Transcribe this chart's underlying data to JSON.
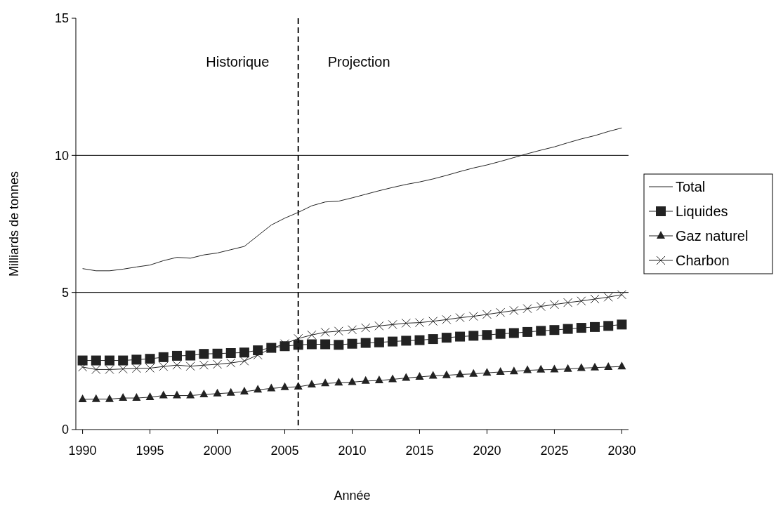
{
  "chart_data": {
    "type": "line",
    "xlabel": "Année",
    "ylabel": "Milliards de tonnes",
    "x": [
      1990,
      1991,
      1992,
      1993,
      1994,
      1995,
      1996,
      1997,
      1998,
      1999,
      2000,
      2001,
      2002,
      2003,
      2004,
      2005,
      2006,
      2007,
      2008,
      2009,
      2010,
      2011,
      2012,
      2013,
      2014,
      2015,
      2016,
      2017,
      2018,
      2019,
      2020,
      2021,
      2022,
      2023,
      2024,
      2025,
      2026,
      2027,
      2028,
      2029,
      2030
    ],
    "series": [
      {
        "name": "Total",
        "color": "#222222",
        "marker": "none",
        "values": [
          5.87,
          5.79,
          5.79,
          5.85,
          5.93,
          6.0,
          6.16,
          6.28,
          6.25,
          6.37,
          6.44,
          6.56,
          6.68,
          7.07,
          7.46,
          7.71,
          7.92,
          8.16,
          8.3,
          8.33,
          8.45,
          8.58,
          8.71,
          8.83,
          8.94,
          9.03,
          9.14,
          9.27,
          9.41,
          9.54,
          9.65,
          9.78,
          9.92,
          10.06,
          10.19,
          10.31,
          10.46,
          10.6,
          10.72,
          10.87,
          11.0
        ]
      },
      {
        "name": "Liquides",
        "color": "#222222",
        "marker": "square",
        "values": [
          2.52,
          2.52,
          2.52,
          2.52,
          2.55,
          2.58,
          2.64,
          2.69,
          2.7,
          2.76,
          2.77,
          2.79,
          2.81,
          2.89,
          2.98,
          3.04,
          3.09,
          3.11,
          3.11,
          3.09,
          3.13,
          3.16,
          3.18,
          3.21,
          3.24,
          3.26,
          3.3,
          3.35,
          3.39,
          3.42,
          3.45,
          3.49,
          3.52,
          3.56,
          3.6,
          3.63,
          3.67,
          3.71,
          3.74,
          3.78,
          3.83
        ]
      },
      {
        "name": "Gaz naturel",
        "color": "#222222",
        "marker": "triangle",
        "values": [
          1.1,
          1.11,
          1.11,
          1.15,
          1.15,
          1.18,
          1.24,
          1.24,
          1.24,
          1.28,
          1.31,
          1.34,
          1.38,
          1.45,
          1.5,
          1.54,
          1.56,
          1.64,
          1.68,
          1.71,
          1.73,
          1.77,
          1.79,
          1.83,
          1.88,
          1.92,
          1.96,
          1.98,
          2.01,
          2.03,
          2.07,
          2.1,
          2.12,
          2.16,
          2.18,
          2.19,
          2.21,
          2.24,
          2.26,
          2.28,
          2.3
        ]
      },
      {
        "name": "Charbon",
        "color": "#222222",
        "marker": "cross",
        "values": [
          2.28,
          2.19,
          2.19,
          2.21,
          2.23,
          2.24,
          2.3,
          2.35,
          2.31,
          2.35,
          2.38,
          2.43,
          2.5,
          2.72,
          2.96,
          3.13,
          3.32,
          3.45,
          3.55,
          3.59,
          3.64,
          3.71,
          3.78,
          3.83,
          3.88,
          3.9,
          3.95,
          4.01,
          4.08,
          4.13,
          4.2,
          4.27,
          4.34,
          4.41,
          4.49,
          4.56,
          4.63,
          4.69,
          4.76,
          4.83,
          4.92
        ]
      }
    ],
    "xlim": [
      1989.5,
      2030.5
    ],
    "xticks": [
      1990,
      1995,
      2000,
      2005,
      2010,
      2015,
      2020,
      2025,
      2030
    ],
    "ylim": [
      0,
      15
    ],
    "yticks": [
      0,
      5,
      10,
      15
    ],
    "grid": "y",
    "legend": "right",
    "ref_lines": [
      {
        "axis": "x",
        "value": 2006,
        "line_style": "dashed",
        "color": "#111111"
      }
    ],
    "annotations": [
      "Historique",
      "Projection"
    ]
  }
}
